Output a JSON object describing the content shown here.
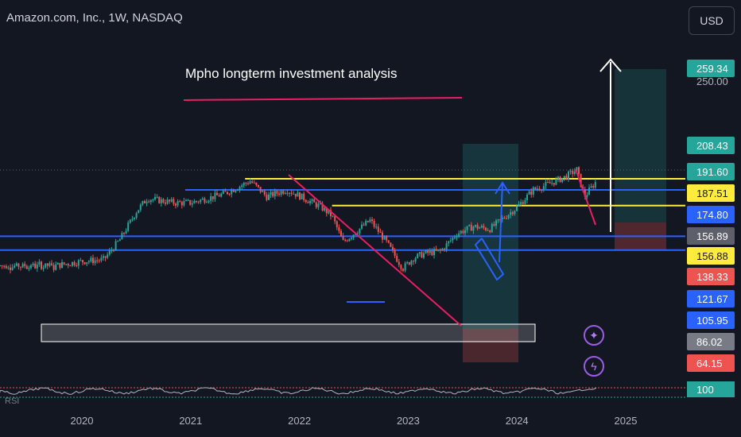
{
  "header": {
    "symbol_title": "Amazon.com, Inc., 1W, NASDAQ",
    "currency_button": "USD"
  },
  "annotation": {
    "text": "Mpho longterm investment analysis"
  },
  "colors": {
    "background": "#131722",
    "up": "#26a69a",
    "down": "#ef5350",
    "yellow_line": "#ffeb3b",
    "blue_line": "#2962ff",
    "trend_line": "#e91e63",
    "white_arrow": "#ffffff"
  },
  "icons": {
    "star_button": "sparkle-icon",
    "bolt_button": "lightning-icon"
  },
  "chart_data": {
    "type": "candlestick",
    "title": "Amazon.com, Inc., 1W, NASDAQ",
    "x_ticks": [
      "2020",
      "2021",
      "2022",
      "2023",
      "2024",
      "2025"
    ],
    "y_ticks": [
      "250.00"
    ],
    "ylim": [
      55,
      270
    ],
    "price_labels": [
      {
        "value": "259.34",
        "color": "#26a69a"
      },
      {
        "value": "208.43",
        "color": "#26a69a"
      },
      {
        "value": "191.60",
        "color": "#26a69a"
      },
      {
        "value": "187.51",
        "color": "#ffeb3b"
      },
      {
        "value": "174.80",
        "color": "#2962ff"
      },
      {
        "value": "156.89",
        "color": "#5d606b"
      },
      {
        "value": "156.88",
        "color": "#ffeb3b"
      },
      {
        "value": "138.33",
        "color": "#ef5350"
      },
      {
        "value": "121.67",
        "color": "#2962ff"
      },
      {
        "value": "105.95",
        "color": "#2962ff"
      },
      {
        "value": "86.02",
        "color": "#787b86"
      },
      {
        "value": "64.15",
        "color": "#ef5350"
      }
    ],
    "horizontal_levels": [
      {
        "value": 187.51,
        "color": "yellow",
        "from": "2021.5",
        "to": "end"
      },
      {
        "value": 174.8,
        "color": "blue",
        "from": "2020.95",
        "to": "end"
      },
      {
        "value": 156.88,
        "color": "yellow",
        "from": "2022.3",
        "to": "end"
      },
      {
        "value": 121.67,
        "color": "blue",
        "from": "start",
        "to": "end"
      },
      {
        "value": 105.95,
        "color": "blue",
        "from": "start",
        "to": "end"
      }
    ],
    "indicator_pane": {
      "label": "RSI",
      "value_label": "100"
    },
    "weekly_close_approx": [
      {
        "x": 2019.75,
        "close": 88
      },
      {
        "x": 2020.0,
        "close": 93
      },
      {
        "x": 2020.2,
        "close": 95
      },
      {
        "x": 2020.35,
        "close": 118
      },
      {
        "x": 2020.5,
        "close": 150
      },
      {
        "x": 2020.6,
        "close": 165
      },
      {
        "x": 2020.85,
        "close": 160
      },
      {
        "x": 2021.0,
        "close": 160
      },
      {
        "x": 2021.3,
        "close": 170
      },
      {
        "x": 2021.55,
        "close": 185
      },
      {
        "x": 2021.7,
        "close": 167
      },
      {
        "x": 2021.88,
        "close": 175
      },
      {
        "x": 2022.0,
        "close": 168
      },
      {
        "x": 2022.2,
        "close": 155
      },
      {
        "x": 2022.3,
        "close": 145
      },
      {
        "x": 2022.4,
        "close": 115
      },
      {
        "x": 2022.55,
        "close": 130
      },
      {
        "x": 2022.65,
        "close": 140
      },
      {
        "x": 2022.8,
        "close": 115
      },
      {
        "x": 2022.95,
        "close": 85
      },
      {
        "x": 2023.05,
        "close": 97
      },
      {
        "x": 2023.15,
        "close": 102
      },
      {
        "x": 2023.3,
        "close": 105
      },
      {
        "x": 2023.45,
        "close": 125
      },
      {
        "x": 2023.6,
        "close": 133
      },
      {
        "x": 2023.75,
        "close": 130
      },
      {
        "x": 2023.85,
        "close": 140
      },
      {
        "x": 2024.0,
        "close": 155
      },
      {
        "x": 2024.15,
        "close": 175
      },
      {
        "x": 2024.3,
        "close": 182
      },
      {
        "x": 2024.45,
        "close": 190
      },
      {
        "x": 2024.55,
        "close": 198
      },
      {
        "x": 2024.62,
        "close": 167
      },
      {
        "x": 2024.7,
        "close": 180
      },
      {
        "x": 2024.75,
        "close": 188
      }
    ]
  }
}
